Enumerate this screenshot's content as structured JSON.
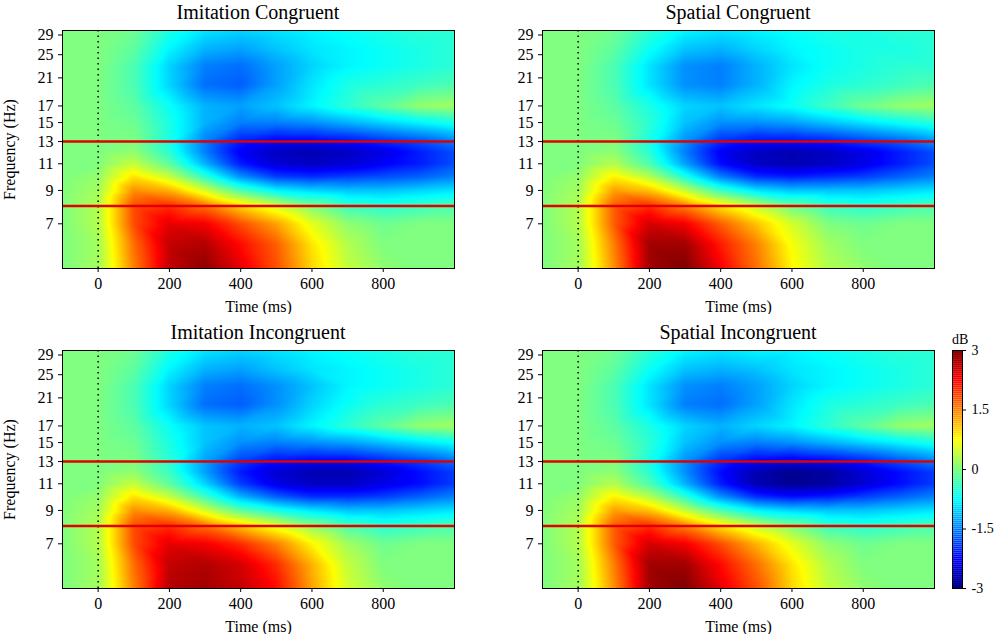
{
  "chart_data": [
    {
      "type": "heatmap",
      "title": "Imitation Congruent",
      "x_label": "Time (ms)",
      "y_label": "Frequency (Hz)",
      "x": [
        -100,
        0,
        100,
        200,
        300,
        400,
        500,
        600,
        700,
        800,
        900,
        1000
      ],
      "y": [
        5,
        6,
        7,
        8,
        9,
        10,
        11,
        12,
        13,
        15,
        17,
        20,
        23,
        26,
        30
      ],
      "values": [
        [
          0,
          0.2,
          1.5,
          2.6,
          2.9,
          2.4,
          1.8,
          1.0,
          0.4,
          0.1,
          0,
          0
        ],
        [
          0,
          0.2,
          1.6,
          2.6,
          2.7,
          2.2,
          1.7,
          0.9,
          0.3,
          0,
          0,
          0
        ],
        [
          0,
          0.3,
          1.8,
          2.4,
          2.3,
          1.8,
          1.3,
          0.6,
          0.1,
          -0.1,
          0,
          0
        ],
        [
          0,
          0.3,
          1.8,
          2.0,
          1.6,
          1.0,
          0.5,
          0.0,
          -0.4,
          -0.5,
          -0.4,
          -0.3
        ],
        [
          0,
          0.2,
          1.4,
          1.2,
          0.5,
          -0.3,
          -0.8,
          -1.0,
          -1.1,
          -1.1,
          -1.0,
          -0.9
        ],
        [
          0,
          0.1,
          0.9,
          0.4,
          -0.5,
          -1.4,
          -1.9,
          -2.0,
          -1.9,
          -1.8,
          -1.7,
          -1.5
        ],
        [
          0,
          0,
          0.4,
          -0.2,
          -1.2,
          -2.1,
          -2.5,
          -2.6,
          -2.5,
          -2.3,
          -2.1,
          -1.8
        ],
        [
          0,
          0,
          0.1,
          -0.5,
          -1.5,
          -2.3,
          -2.6,
          -2.7,
          -2.6,
          -2.4,
          -2.1,
          -1.8
        ],
        [
          0,
          0,
          0,
          -0.6,
          -1.5,
          -2.1,
          -2.3,
          -2.3,
          -2.2,
          -2.0,
          -1.8,
          -1.5
        ],
        [
          0,
          0,
          -0.1,
          -0.6,
          -1.2,
          -1.5,
          -1.5,
          -1.4,
          -1.2,
          -1.0,
          -0.8,
          -0.6
        ],
        [
          0,
          0,
          -0.2,
          -0.7,
          -1.2,
          -1.3,
          -1.1,
          -0.8,
          -0.5,
          -0.2,
          0.1,
          0.2
        ],
        [
          0,
          0,
          -0.3,
          -1.0,
          -1.6,
          -1.7,
          -1.3,
          -0.9,
          -0.6,
          -0.5,
          -0.4,
          -0.3
        ],
        [
          0,
          0,
          -0.3,
          -1.0,
          -1.5,
          -1.6,
          -1.3,
          -1.0,
          -0.8,
          -0.7,
          -0.6,
          -0.5
        ],
        [
          0,
          0,
          -0.2,
          -0.8,
          -1.2,
          -1.3,
          -1.1,
          -0.9,
          -0.8,
          -0.7,
          -0.6,
          -0.5
        ],
        [
          0,
          0,
          -0.1,
          -0.6,
          -0.9,
          -1.0,
          -0.9,
          -0.8,
          -0.7,
          -0.6,
          -0.5,
          -0.5
        ]
      ],
      "xlim": [
        -100,
        1000
      ],
      "ylim": [
        5,
        30
      ],
      "xticks": [
        0,
        200,
        400,
        600,
        800
      ],
      "yticks": [
        7,
        9,
        11,
        13,
        15,
        17,
        21,
        25,
        29
      ],
      "log": "y",
      "reference_lines": {
        "x": [
          0
        ],
        "y": [
          8,
          13
        ]
      }
    },
    {
      "type": "heatmap",
      "title": "Spatial Congruent",
      "x_label": "Time (ms)",
      "x": [
        -100,
        0,
        100,
        200,
        300,
        400,
        500,
        600,
        700,
        800,
        900,
        1000
      ],
      "y": [
        5,
        6,
        7,
        8,
        9,
        10,
        11,
        12,
        13,
        15,
        17,
        20,
        23,
        26,
        30
      ],
      "values": [
        [
          0,
          0.2,
          1.4,
          2.8,
          3.0,
          2.3,
          1.6,
          0.8,
          0.3,
          0.1,
          0,
          0
        ],
        [
          0,
          0.2,
          1.5,
          2.8,
          2.8,
          2.1,
          1.5,
          0.7,
          0.2,
          0,
          0,
          0
        ],
        [
          0,
          0.3,
          1.7,
          2.5,
          2.3,
          1.7,
          1.1,
          0.5,
          0.0,
          -0.1,
          0,
          0
        ],
        [
          0,
          0.3,
          1.7,
          2.0,
          1.5,
          0.9,
          0.4,
          -0.1,
          -0.4,
          -0.5,
          -0.4,
          -0.3
        ],
        [
          0,
          0.2,
          1.3,
          1.1,
          0.4,
          -0.4,
          -0.9,
          -1.1,
          -1.1,
          -1.1,
          -1.0,
          -0.9
        ],
        [
          0,
          0.1,
          0.8,
          0.3,
          -0.6,
          -1.5,
          -2.0,
          -2.1,
          -2.0,
          -1.9,
          -1.7,
          -1.5
        ],
        [
          0,
          0,
          0.3,
          -0.3,
          -1.3,
          -2.2,
          -2.6,
          -2.7,
          -2.6,
          -2.4,
          -2.1,
          -1.8
        ],
        [
          0,
          0,
          0.1,
          -0.5,
          -1.5,
          -2.3,
          -2.6,
          -2.7,
          -2.6,
          -2.4,
          -2.1,
          -1.8
        ],
        [
          0,
          0,
          0,
          -0.6,
          -1.4,
          -2.0,
          -2.2,
          -2.2,
          -2.1,
          -1.9,
          -1.7,
          -1.4
        ],
        [
          0,
          0,
          -0.1,
          -0.5,
          -1.1,
          -1.4,
          -1.4,
          -1.3,
          -1.1,
          -0.9,
          -0.7,
          -0.5
        ],
        [
          0,
          0,
          -0.2,
          -0.6,
          -1.0,
          -1.1,
          -0.9,
          -0.7,
          -0.4,
          -0.1,
          0.1,
          0.2
        ],
        [
          0,
          0,
          -0.3,
          -0.9,
          -1.4,
          -1.5,
          -1.2,
          -0.8,
          -0.6,
          -0.5,
          -0.4,
          -0.3
        ],
        [
          0,
          0,
          -0.3,
          -0.9,
          -1.4,
          -1.5,
          -1.2,
          -0.9,
          -0.7,
          -0.6,
          -0.5,
          -0.5
        ],
        [
          0,
          0,
          -0.2,
          -0.7,
          -1.1,
          -1.2,
          -1.0,
          -0.8,
          -0.7,
          -0.6,
          -0.6,
          -0.5
        ],
        [
          0,
          0,
          -0.1,
          -0.5,
          -0.8,
          -0.9,
          -0.8,
          -0.7,
          -0.6,
          -0.6,
          -0.5,
          -0.5
        ]
      ],
      "xlim": [
        -100,
        1000
      ],
      "ylim": [
        5,
        30
      ],
      "xticks": [
        0,
        200,
        400,
        600,
        800
      ],
      "yticks": [
        7,
        9,
        11,
        13,
        15,
        17,
        21,
        25,
        29
      ],
      "log": "y",
      "reference_lines": {
        "x": [
          0
        ],
        "y": [
          8,
          13
        ]
      }
    },
    {
      "type": "heatmap",
      "title": "Imitation Incongruent",
      "x_label": "Time (ms)",
      "y_label": "Frequency (Hz)",
      "x": [
        -100,
        0,
        100,
        200,
        300,
        400,
        500,
        600,
        700,
        800,
        900,
        1000
      ],
      "y": [
        5,
        6,
        7,
        8,
        9,
        10,
        11,
        12,
        13,
        15,
        17,
        20,
        23,
        26,
        30
      ],
      "values": [
        [
          0,
          0.2,
          1.5,
          2.7,
          2.8,
          2.6,
          2.2,
          1.3,
          0.5,
          0.1,
          0,
          0
        ],
        [
          0,
          0.2,
          1.6,
          2.6,
          2.7,
          2.5,
          2.0,
          1.2,
          0.4,
          0,
          0,
          0
        ],
        [
          0,
          0.3,
          1.8,
          2.4,
          2.3,
          2.0,
          1.5,
          0.8,
          0.2,
          -0.1,
          0,
          0
        ],
        [
          0,
          0.3,
          1.8,
          2.0,
          1.6,
          1.1,
          0.6,
          0.1,
          -0.3,
          -0.5,
          -0.4,
          -0.3
        ],
        [
          0,
          0.2,
          1.4,
          1.2,
          0.5,
          -0.2,
          -0.6,
          -0.9,
          -1.1,
          -1.1,
          -1.0,
          -0.9
        ],
        [
          0,
          0.1,
          0.9,
          0.4,
          -0.4,
          -1.2,
          -1.7,
          -2.0,
          -2.0,
          -1.9,
          -1.7,
          -1.5
        ],
        [
          0,
          0,
          0.4,
          -0.2,
          -1.0,
          -1.9,
          -2.4,
          -2.6,
          -2.6,
          -2.4,
          -2.2,
          -1.9
        ],
        [
          0,
          0,
          0.1,
          -0.4,
          -1.3,
          -2.1,
          -2.5,
          -2.7,
          -2.7,
          -2.5,
          -2.2,
          -1.9
        ],
        [
          0,
          0,
          0,
          -0.5,
          -1.3,
          -1.9,
          -2.2,
          -2.3,
          -2.3,
          -2.1,
          -1.9,
          -1.6
        ],
        [
          0,
          0,
          -0.1,
          -0.6,
          -1.1,
          -1.4,
          -1.5,
          -1.4,
          -1.3,
          -1.1,
          -0.9,
          -0.7
        ],
        [
          0,
          0,
          -0.2,
          -0.7,
          -1.1,
          -1.2,
          -1.1,
          -0.8,
          -0.5,
          -0.2,
          0.1,
          0.2
        ],
        [
          0,
          0,
          -0.3,
          -1.0,
          -1.6,
          -1.7,
          -1.4,
          -1.0,
          -0.7,
          -0.5,
          -0.4,
          -0.3
        ],
        [
          0,
          0,
          -0.3,
          -1.0,
          -1.5,
          -1.6,
          -1.4,
          -1.1,
          -0.8,
          -0.7,
          -0.6,
          -0.5
        ],
        [
          0,
          0,
          -0.2,
          -0.8,
          -1.2,
          -1.3,
          -1.1,
          -0.9,
          -0.8,
          -0.7,
          -0.6,
          -0.5
        ],
        [
          0,
          0,
          -0.1,
          -0.6,
          -0.9,
          -1.0,
          -0.9,
          -0.8,
          -0.7,
          -0.6,
          -0.5,
          -0.5
        ]
      ],
      "xlim": [
        -100,
        1000
      ],
      "ylim": [
        5,
        30
      ],
      "xticks": [
        0,
        200,
        400,
        600,
        800
      ],
      "yticks": [
        7,
        9,
        11,
        13,
        15,
        17,
        21,
        25,
        29
      ],
      "log": "y",
      "reference_lines": {
        "x": [
          0
        ],
        "y": [
          8,
          13
        ]
      }
    },
    {
      "type": "heatmap",
      "title": "Spatial Incongruent",
      "x_label": "Time (ms)",
      "x": [
        -100,
        0,
        100,
        200,
        300,
        400,
        500,
        600,
        700,
        800,
        900,
        1000
      ],
      "y": [
        5,
        6,
        7,
        8,
        9,
        10,
        11,
        12,
        13,
        15,
        17,
        20,
        23,
        26,
        30
      ],
      "values": [
        [
          0,
          0.2,
          1.4,
          2.8,
          3.0,
          2.4,
          1.8,
          1.0,
          0.4,
          0.1,
          0,
          0
        ],
        [
          0,
          0.2,
          1.5,
          2.8,
          2.8,
          2.2,
          1.6,
          0.9,
          0.3,
          0,
          0,
          0
        ],
        [
          0,
          0.3,
          1.7,
          2.5,
          2.3,
          1.8,
          1.2,
          0.6,
          0.1,
          -0.1,
          0,
          0
        ],
        [
          0,
          0.3,
          1.7,
          2.0,
          1.5,
          0.9,
          0.4,
          0.0,
          -0.4,
          -0.5,
          -0.4,
          -0.3
        ],
        [
          0,
          0.2,
          1.3,
          1.1,
          0.4,
          -0.3,
          -0.8,
          -1.0,
          -1.1,
          -1.1,
          -1.0,
          -0.9
        ],
        [
          0,
          0.1,
          0.8,
          0.3,
          -0.5,
          -1.4,
          -2.0,
          -2.2,
          -2.1,
          -1.9,
          -1.7,
          -1.5
        ],
        [
          0,
          0,
          0.3,
          -0.3,
          -1.2,
          -2.1,
          -2.7,
          -2.9,
          -2.8,
          -2.5,
          -2.2,
          -1.9
        ],
        [
          0,
          0,
          0.1,
          -0.5,
          -1.4,
          -2.2,
          -2.7,
          -2.9,
          -2.8,
          -2.5,
          -2.2,
          -1.9
        ],
        [
          0,
          0,
          0,
          -0.6,
          -1.4,
          -2.0,
          -2.3,
          -2.4,
          -2.3,
          -2.1,
          -1.8,
          -1.5
        ],
        [
          0,
          0,
          -0.1,
          -0.5,
          -1.1,
          -1.4,
          -1.5,
          -1.4,
          -1.2,
          -1.0,
          -0.8,
          -0.6
        ],
        [
          0,
          0,
          -0.2,
          -0.6,
          -1.0,
          -1.2,
          -1.0,
          -0.8,
          -0.5,
          -0.2,
          0.1,
          0.2
        ],
        [
          0,
          0,
          -0.3,
          -0.9,
          -1.5,
          -1.6,
          -1.3,
          -0.9,
          -0.6,
          -0.5,
          -0.4,
          -0.3
        ],
        [
          0,
          0,
          -0.3,
          -0.9,
          -1.4,
          -1.5,
          -1.3,
          -1.0,
          -0.8,
          -0.7,
          -0.6,
          -0.5
        ],
        [
          0,
          0,
          -0.2,
          -0.7,
          -1.1,
          -1.2,
          -1.1,
          -0.9,
          -0.8,
          -0.7,
          -0.6,
          -0.5
        ],
        [
          0,
          0,
          -0.1,
          -0.5,
          -0.8,
          -0.9,
          -0.8,
          -0.8,
          -0.7,
          -0.6,
          -0.5,
          -0.5
        ]
      ],
      "xlim": [
        -100,
        1000
      ],
      "ylim": [
        5,
        30
      ],
      "xticks": [
        0,
        200,
        400,
        600,
        800
      ],
      "yticks": [
        7,
        9,
        11,
        13,
        15,
        17,
        21,
        25,
        29
      ],
      "log": "y",
      "reference_lines": {
        "x": [
          0
        ],
        "y": [
          8,
          13
        ]
      },
      "colorbar": {
        "label": "dB",
        "range": [
          -3,
          3
        ],
        "ticks": [
          -3,
          -1.5,
          0,
          1.5,
          3
        ]
      }
    }
  ]
}
